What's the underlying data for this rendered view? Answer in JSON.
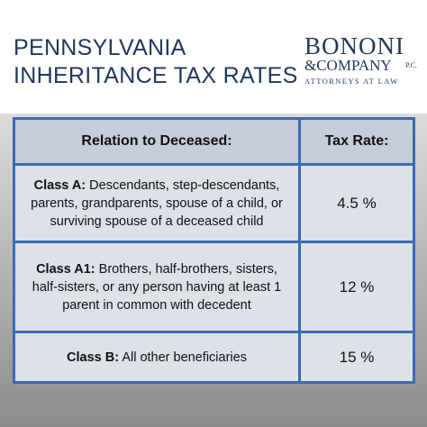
{
  "header": {
    "title": [
      "PENNSYLVANIA",
      "INHERITANCE TAX RATES"
    ],
    "logo": {
      "name": "BONONI",
      "company": "&COMPANY",
      "suffix": "P.C.",
      "tagline": "ATTORNEYS AT LAW"
    }
  },
  "table": {
    "columns": [
      "Relation to Deceased:",
      "Tax Rate:"
    ],
    "rows": [
      {
        "class": "Class A:",
        "description": "Descendants, step-descendants, parents, grandparents, spouse of a child, or surviving spouse of a deceased child",
        "rate": "4.5 %"
      },
      {
        "class": "Class A1:",
        "description": "Brothers, half-brothers, sisters, half-sisters, or any person having at least 1 parent in common with decedent",
        "rate": "12 %"
      },
      {
        "class": "Class B:",
        "description": "All other beneficiaries",
        "rate": "15 %"
      }
    ]
  }
}
